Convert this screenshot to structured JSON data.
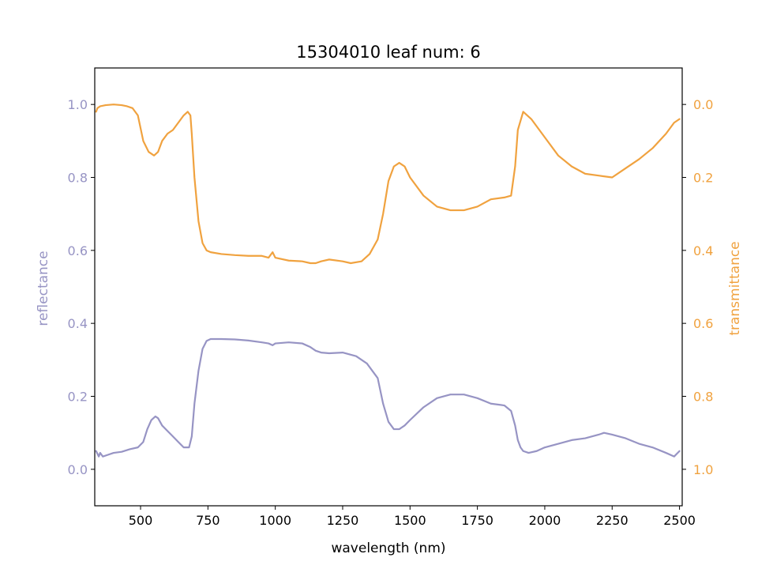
{
  "chart_data": {
    "type": "line",
    "title": "15304010 leaf num: 6",
    "xlabel": "wavelength (nm)",
    "ylabel_left": "reflectance",
    "ylabel_right": "transmittance",
    "xlim": [
      330,
      2510
    ],
    "ylim_left": [
      -0.1,
      1.1
    ],
    "ylim_right": [
      1.1,
      -0.1
    ],
    "right_axis_inverted": true,
    "grid": false,
    "x_ticks": [
      500,
      750,
      1000,
      1250,
      1500,
      1750,
      2000,
      2250,
      2500
    ],
    "y_ticks_left": [
      0.0,
      0.2,
      0.4,
      0.6,
      0.8,
      1.0
    ],
    "y_ticks_right": [
      0.0,
      0.2,
      0.4,
      0.6,
      0.8,
      1.0
    ],
    "series": [
      {
        "axis": "left",
        "color": "#9794c4",
        "x": [
          335,
          345,
          350,
          360,
          380,
          400,
          430,
          460,
          490,
          510,
          525,
          540,
          555,
          565,
          580,
          600,
          620,
          640,
          660,
          680,
          690,
          700,
          715,
          730,
          745,
          760,
          800,
          850,
          900,
          950,
          975,
          990,
          1000,
          1050,
          1100,
          1130,
          1150,
          1170,
          1200,
          1250,
          1300,
          1340,
          1380,
          1400,
          1420,
          1440,
          1460,
          1480,
          1500,
          1550,
          1600,
          1650,
          1700,
          1750,
          1800,
          1850,
          1875,
          1890,
          1900,
          1910,
          1920,
          1940,
          1970,
          2000,
          2050,
          2100,
          2150,
          2200,
          2220,
          2250,
          2300,
          2350,
          2400,
          2450,
          2480,
          2500
        ],
        "y": [
          0.05,
          0.035,
          0.045,
          0.035,
          0.04,
          0.045,
          0.048,
          0.055,
          0.06,
          0.075,
          0.11,
          0.135,
          0.145,
          0.14,
          0.12,
          0.105,
          0.09,
          0.075,
          0.06,
          0.06,
          0.09,
          0.18,
          0.27,
          0.33,
          0.352,
          0.357,
          0.357,
          0.356,
          0.353,
          0.348,
          0.345,
          0.34,
          0.345,
          0.348,
          0.345,
          0.335,
          0.325,
          0.32,
          0.318,
          0.32,
          0.31,
          0.29,
          0.25,
          0.18,
          0.13,
          0.11,
          0.11,
          0.12,
          0.135,
          0.17,
          0.195,
          0.205,
          0.205,
          0.195,
          0.18,
          0.175,
          0.16,
          0.12,
          0.08,
          0.06,
          0.05,
          0.045,
          0.05,
          0.06,
          0.07,
          0.08,
          0.085,
          0.095,
          0.1,
          0.095,
          0.085,
          0.07,
          0.06,
          0.045,
          0.035,
          0.05
        ]
      },
      {
        "axis": "right",
        "color": "#f0a23f",
        "x": [
          335,
          340,
          350,
          370,
          400,
          430,
          450,
          470,
          490,
          510,
          530,
          550,
          565,
          580,
          600,
          620,
          640,
          660,
          675,
          685,
          690,
          700,
          715,
          730,
          745,
          760,
          800,
          850,
          900,
          950,
          975,
          990,
          1000,
          1050,
          1100,
          1130,
          1150,
          1170,
          1200,
          1250,
          1280,
          1320,
          1350,
          1380,
          1400,
          1420,
          1440,
          1460,
          1480,
          1500,
          1550,
          1600,
          1650,
          1700,
          1750,
          1800,
          1850,
          1875,
          1890,
          1900,
          1920,
          1950,
          2000,
          2050,
          2100,
          2150,
          2200,
          2250,
          2300,
          2350,
          2400,
          2450,
          2480,
          2500
        ],
        "y": [
          0.02,
          0.01,
          0.005,
          0.002,
          0.0,
          0.002,
          0.005,
          0.01,
          0.03,
          0.1,
          0.13,
          0.14,
          0.13,
          0.1,
          0.08,
          0.07,
          0.05,
          0.03,
          0.02,
          0.03,
          0.08,
          0.2,
          0.32,
          0.38,
          0.4,
          0.405,
          0.41,
          0.413,
          0.415,
          0.415,
          0.42,
          0.405,
          0.42,
          0.428,
          0.43,
          0.435,
          0.435,
          0.43,
          0.425,
          0.43,
          0.435,
          0.43,
          0.41,
          0.37,
          0.3,
          0.21,
          0.17,
          0.16,
          0.17,
          0.2,
          0.25,
          0.28,
          0.29,
          0.29,
          0.28,
          0.26,
          0.255,
          0.25,
          0.17,
          0.07,
          0.02,
          0.04,
          0.09,
          0.14,
          0.17,
          0.19,
          0.195,
          0.2,
          0.175,
          0.15,
          0.12,
          0.08,
          0.05,
          0.04
        ]
      }
    ]
  }
}
